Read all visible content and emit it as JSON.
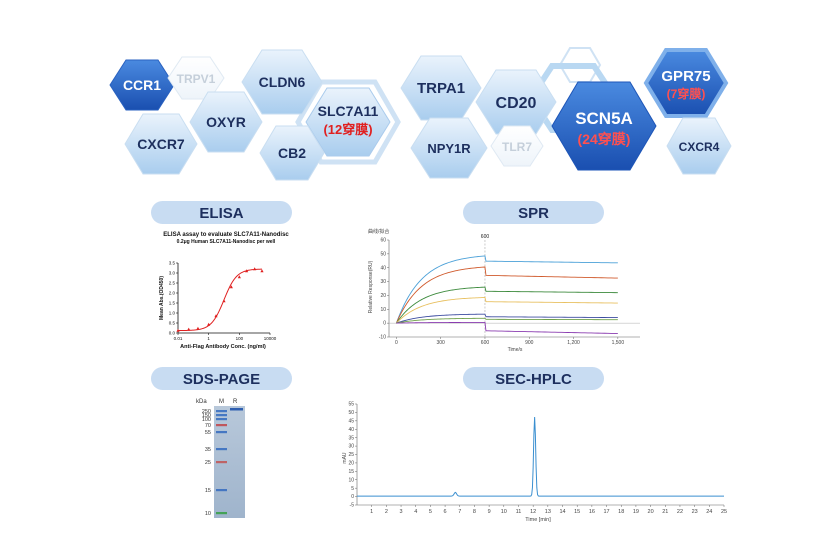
{
  "hexagons": [
    {
      "label": "CCR1",
      "style": "dark"
    },
    {
      "label": "TRPV1",
      "style": "ghost"
    },
    {
      "label": "CLDN6",
      "style": "light"
    },
    {
      "label": "OXYR",
      "style": "light"
    },
    {
      "label": "SLC7A11",
      "sub": "(12穿膜)",
      "style": "light"
    },
    {
      "label": "CXCR7",
      "style": "light"
    },
    {
      "label": "CB2",
      "style": "light"
    },
    {
      "label": "TRPA1",
      "style": "light"
    },
    {
      "label": "NPY1R",
      "style": "light"
    },
    {
      "label": "CD20",
      "style": "light"
    },
    {
      "label": "TLR7",
      "style": "ghost"
    },
    {
      "label": "SCN5A",
      "sub": "(24穿膜)",
      "style": "dark"
    },
    {
      "label": "GPR75",
      "sub": "(7穿膜)",
      "style": "dark"
    },
    {
      "label": "CXCR4",
      "style": "light"
    }
  ],
  "sections": {
    "elisa": "ELISA",
    "spr": "SPR",
    "sds": "SDS-PAGE",
    "sec": "SEC-HPLC"
  },
  "elisa_chart": {
    "chart_data": {
      "type": "scatter",
      "title": "ELISA assay to evaluate SLC7A11-Nanodisc",
      "subtitle": "0.2μg Human SLC7A11-Nanodisc per well",
      "xlabel": "Anti-Flag Antibody Conc. (ng/ml)",
      "ylabel": "Mean Abs.(OD450)",
      "xscale": "log",
      "xlim": [
        0.01,
        10000
      ],
      "ylim": [
        0,
        3.5
      ],
      "xticks": [
        "0.01",
        "1",
        "100",
        "10000"
      ],
      "yticks": [
        "0.0",
        "0.5",
        "1.0",
        "1.5",
        "2.0",
        "2.5",
        "3.0",
        "3.5"
      ],
      "points_x": [
        0.01,
        0.05,
        0.2,
        1,
        3,
        10,
        30,
        100,
        300,
        1000,
        3000
      ],
      "points_y": [
        0.12,
        0.18,
        0.22,
        0.42,
        0.85,
        1.6,
        2.3,
        2.8,
        3.1,
        3.2,
        3.1
      ],
      "curve_color": "#e02020"
    }
  },
  "spr_chart": {
    "chart_data": {
      "type": "line",
      "title": "",
      "corner_label": "曲线/拟合",
      "xlabel": "Time/s",
      "ylabel": "Relative Response(RU)",
      "xlim": [
        -50,
        1650
      ],
      "ylim": [
        -10,
        60
      ],
      "xticks": [
        "0",
        "300",
        "600",
        "900",
        "1,200",
        "1,500"
      ],
      "yticks": [
        "-10",
        "0",
        "10",
        "20",
        "30",
        "40",
        "50",
        "60"
      ],
      "marker_label": "600",
      "series": [
        {
          "color": "#4aa0d8",
          "peak": 48.5,
          "end": 43.5
        },
        {
          "color": "#d05a2c",
          "peak": 40.5,
          "end": 32.5
        },
        {
          "color": "#3c8a3c",
          "peak": 26,
          "end": 22
        },
        {
          "color": "#e8c060",
          "peak": 18.5,
          "end": 14.5
        },
        {
          "color": "#3c4ca0",
          "peak": 6.5,
          "end": 4
        },
        {
          "color": "#6fa04a",
          "peak": 3.5,
          "end": 2.5
        },
        {
          "color": "#8a3cb0",
          "peak": 0.5,
          "end": -7.5
        }
      ]
    }
  },
  "gel": {
    "header_kda": "kDa",
    "header_m": "M",
    "header_r": "R",
    "markers": [
      "250",
      "150",
      "100",
      "70",
      "55",
      "35",
      "25",
      "15",
      "10"
    ]
  },
  "sec_chart": {
    "chart_data": {
      "type": "line",
      "ylabel": "mAU",
      "xlabel": "Time [min]",
      "xlim": [
        0,
        25
      ],
      "ylim": [
        -5,
        55
      ],
      "xticks": [
        "1",
        "2",
        "3",
        "4",
        "5",
        "6",
        "7",
        "8",
        "9",
        "10",
        "11",
        "12",
        "13",
        "14",
        "15",
        "16",
        "17",
        "18",
        "19",
        "20",
        "21",
        "22",
        "23",
        "24",
        "25"
      ],
      "yticks": [
        "-5",
        "0",
        "5",
        "10",
        "15",
        "20",
        "25",
        "30",
        "35",
        "40",
        "45",
        "50",
        "55"
      ],
      "peaks": [
        {
          "x": 6.7,
          "y": 2.2
        },
        {
          "x": 12.1,
          "y": 47
        }
      ],
      "color": "#3a8fd0"
    }
  }
}
